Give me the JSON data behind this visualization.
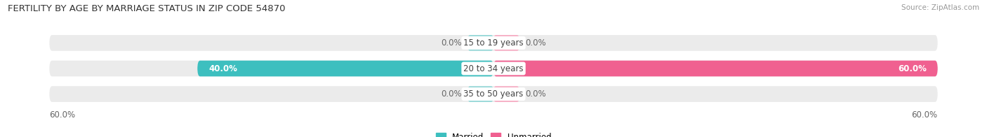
{
  "title": "FERTILITY BY AGE BY MARRIAGE STATUS IN ZIP CODE 54870",
  "source": "Source: ZipAtlas.com",
  "rows": [
    {
      "label": "15 to 19 years",
      "married": 0.0,
      "unmarried": 0.0
    },
    {
      "label": "20 to 34 years",
      "married": 40.0,
      "unmarried": 60.0
    },
    {
      "label": "35 to 50 years",
      "married": 0.0,
      "unmarried": 0.0
    }
  ],
  "max_val": 60.0,
  "married_color": "#3dbfbf",
  "unmarried_color": "#f06090",
  "married_color_light": "#99d9d9",
  "unmarried_color_light": "#f7afc5",
  "row_bg_color": "#ebebeb",
  "bar_height": 0.62,
  "title_fontsize": 9.5,
  "label_fontsize": 8.5,
  "value_fontsize": 8.5,
  "tick_fontsize": 8.5,
  "legend_fontsize": 8.5,
  "bg_color": "#ffffff",
  "center_text_color": "#444444",
  "value_text_white": "#ffffff",
  "value_text_dark": "#666666",
  "bottom_label_color": "#666666"
}
